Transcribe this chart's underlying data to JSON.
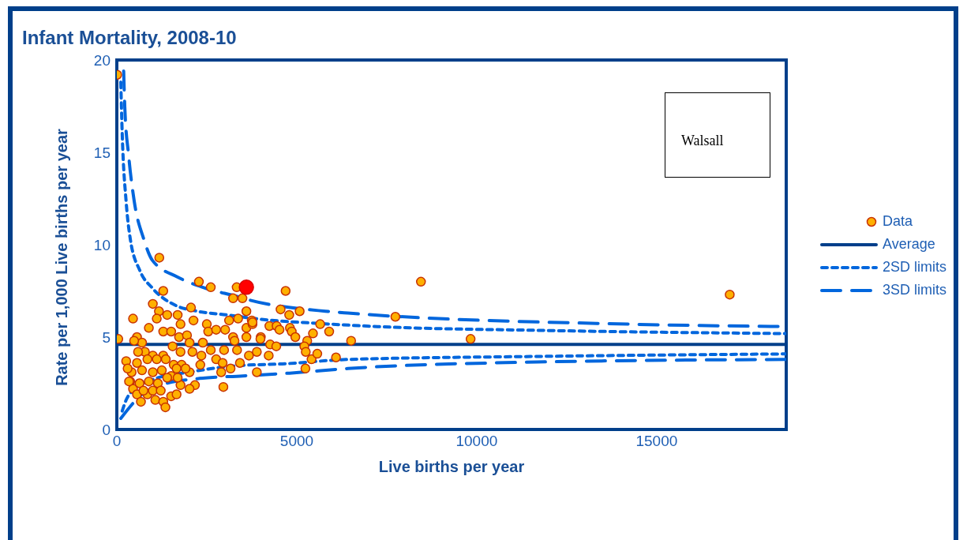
{
  "chart_data": {
    "type": "scatter",
    "title": "Infant Mortality, 2008-10",
    "xlabel": "Live births per year",
    "ylabel": "Rate per 1,000 Live births per year",
    "annotations": [
      "Walsall"
    ],
    "xlim": [
      0,
      18600
    ],
    "xticks": [
      0,
      5000,
      10000,
      15000
    ],
    "ylim": [
      0,
      20
    ],
    "yticks": [
      0,
      5,
      10,
      15,
      20
    ],
    "legend": "right",
    "series": [
      {
        "name": "Data",
        "color": "#ffb000",
        "marker": "circle",
        "x": [
          10,
          40,
          1180,
          2280,
          2610,
          1290,
          3330,
          3230,
          3490,
          1000,
          2060,
          3600,
          450,
          1170,
          1400,
          1690,
          2130,
          2500,
          3120,
          3370,
          3750,
          1770,
          2540,
          2760,
          3010,
          3230,
          3270,
          3600,
          3770,
          3600,
          4000,
          260,
          370,
          450,
          560,
          670,
          850,
          1070,
          1290,
          1350,
          1510,
          2170,
          2960,
          1770,
          1510,
          2610,
          2760,
          2980,
          2940,
          3160,
          2900,
          3340,
          3420,
          3670,
          3890,
          3890,
          2390,
          2350,
          2320,
          2020,
          560,
          700,
          890,
          1110,
          1290,
          1510,
          1730,
          1950,
          2020,
          780,
          1000,
          1290,
          1550,
          1770,
          2100,
          560,
          850,
          1110,
          1360,
          1580,
          1800,
          410,
          700,
          1000,
          1250,
          1660,
          1910,
          630,
          890,
          1140,
          1400,
          1690,
          590,
          480,
          300,
          340,
          740,
          1000,
          1220,
          1660,
          2020,
          4690,
          4550,
          4790,
          5080,
          5650,
          5900,
          5450,
          4240,
          4440,
          4520,
          4810,
          4860,
          4960,
          5290,
          5210,
          5250,
          5410,
          5570,
          6090,
          6510,
          5240,
          4220,
          3990,
          4260,
          4430,
          3770,
          7740,
          8450,
          9830,
          17030
        ],
        "values": [
          19.2,
          4.9,
          9.3,
          8.0,
          7.7,
          7.5,
          7.7,
          7.1,
          7.1,
          6.8,
          6.6,
          6.4,
          6.0,
          6.4,
          6.2,
          6.2,
          5.9,
          5.7,
          5.9,
          6.0,
          5.9,
          5.7,
          5.3,
          5.4,
          5.4,
          5.0,
          4.8,
          5.5,
          5.7,
          5.0,
          5.0,
          3.7,
          2.6,
          2.2,
          1.9,
          1.5,
          1.9,
          1.6,
          1.5,
          1.2,
          1.8,
          2.4,
          2.3,
          2.4,
          2.9,
          4.3,
          3.8,
          4.3,
          3.6,
          3.3,
          3.1,
          4.3,
          3.6,
          4.0,
          4.2,
          3.1,
          4.7,
          4.0,
          3.5,
          3.1,
          5.0,
          4.7,
          5.5,
          6.0,
          5.3,
          5.3,
          5.0,
          5.1,
          4.7,
          4.2,
          4.0,
          4.0,
          4.5,
          4.2,
          4.2,
          3.6,
          3.8,
          3.8,
          3.8,
          3.5,
          3.5,
          3.1,
          3.2,
          3.1,
          3.2,
          3.3,
          3.3,
          2.5,
          2.6,
          2.5,
          2.8,
          2.8,
          4.2,
          4.8,
          3.3,
          2.6,
          2.1,
          2.1,
          2.1,
          1.9,
          2.2,
          7.5,
          6.5,
          6.2,
          6.4,
          5.7,
          5.3,
          5.2,
          5.6,
          5.6,
          5.4,
          5.5,
          5.3,
          5.0,
          4.8,
          4.5,
          4.2,
          3.8,
          4.1,
          3.9,
          4.8,
          3.3,
          4.0,
          4.9,
          4.6,
          4.5,
          5.8,
          6.1,
          8.0,
          4.9,
          7.3
        ]
      },
      {
        "name": "Average",
        "type": "line",
        "color": "#003f8a",
        "line_style": "solid",
        "marker": "none",
        "x": [
          0,
          18600
        ],
        "values": [
          4.6,
          4.6
        ]
      },
      {
        "name": "2SD limits",
        "type": "line",
        "color": "#0066dd",
        "line_style": "dotted",
        "marker": "none",
        "x": [
          110,
          150,
          260,
          375,
          640,
          990,
          1650,
          2240,
          3060,
          4070,
          5540,
          7240,
          11920,
          18600
        ],
        "values": [
          18.8,
          16.0,
          12.3,
          10.3,
          8.6,
          7.65,
          6.7,
          6.4,
          6.2,
          5.95,
          5.75,
          5.57,
          5.36,
          5.19
        ]
      },
      {
        "type": "line",
        "color": "#0066dd",
        "line_style": "dotted",
        "marker": "none",
        "x": [
          150,
          260,
          500,
          1000,
          2000,
          3340,
          4600,
          6420,
          11920,
          18600
        ],
        "values": [
          1.0,
          1.6,
          2.2,
          2.7,
          3.1,
          3.45,
          3.55,
          3.79,
          3.96,
          4.09
        ]
      },
      {
        "name": "3SD limits",
        "type": "line",
        "color": "#0066dd",
        "line_style": "dashed",
        "marker": "none",
        "x": [
          190,
          220,
          330,
          480,
          750,
          990,
          1690,
          2460,
          3340,
          3700,
          5800,
          6420,
          14270,
          18600
        ],
        "values": [
          19.4,
          17.5,
          14.8,
          12.4,
          10.3,
          9.15,
          8.25,
          7.65,
          7.2,
          7.0,
          6.4,
          6.3,
          5.7,
          5.57
        ]
      },
      {
        "type": "line",
        "color": "#0066dd",
        "line_style": "dashed",
        "marker": "none",
        "x": [
          110,
          700,
          1300,
          2240,
          3500,
          4800,
          6420,
          11920,
          18600
        ],
        "values": [
          0.6,
          1.9,
          2.45,
          2.75,
          2.9,
          3.05,
          3.3,
          3.66,
          3.79
        ]
      },
      {
        "color": "#ff0000",
        "marker": "circle",
        "x": [
          3600
        ],
        "values": [
          7.7
        ]
      }
    ]
  }
}
